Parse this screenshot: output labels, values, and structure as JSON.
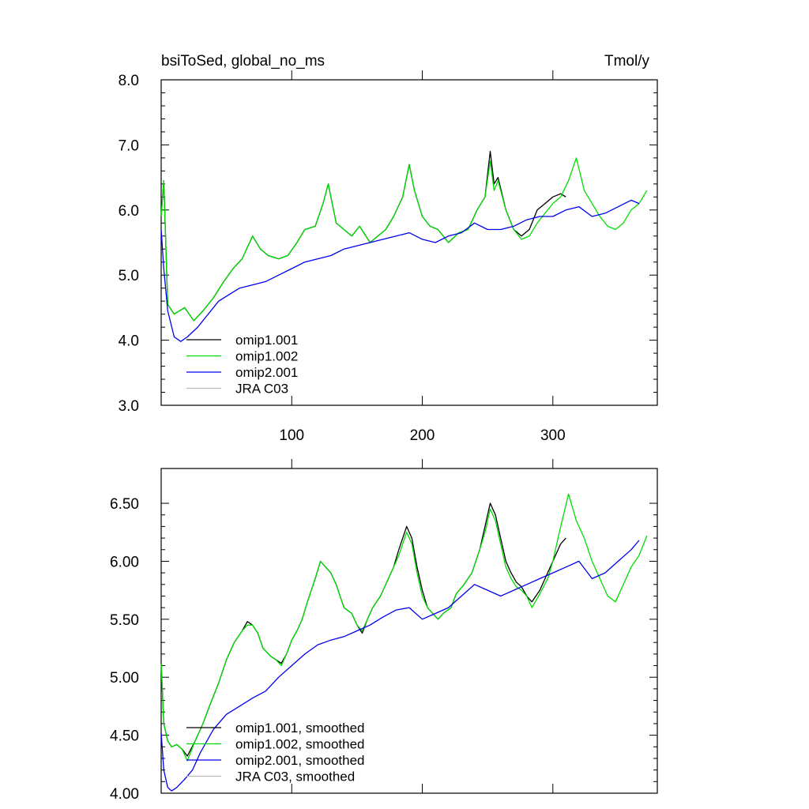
{
  "chart_data": [
    {
      "type": "line",
      "title": "bsiToSed, global_no_ms",
      "units": "Tmol/y",
      "xlim": [
        0,
        380
      ],
      "ylim": [
        3.0,
        8.0
      ],
      "xticks": [
        100,
        200,
        300
      ],
      "xtick_labels": [
        "100",
        "200",
        "300"
      ],
      "yticks": [
        3.0,
        4.0,
        5.0,
        6.0,
        7.0,
        8.0
      ],
      "ytick_labels": [
        "3.0",
        "4.0",
        "5.0",
        "6.0",
        "7.0",
        "8.0"
      ],
      "legend_position": "bottom-left",
      "grid": false,
      "series": [
        {
          "name": "omip1.001",
          "color": "#000000",
          "x": [
            0,
            2,
            5,
            10,
            18,
            25,
            32,
            40,
            48,
            55,
            62,
            70,
            76,
            82,
            90,
            97,
            104,
            110,
            118,
            124,
            128,
            134,
            140,
            146,
            152,
            160,
            166,
            172,
            178,
            185,
            190,
            194,
            200,
            206,
            212,
            220,
            228,
            235,
            242,
            248,
            252,
            255,
            258,
            264,
            270,
            276,
            282,
            288,
            294,
            300,
            306,
            310
          ],
          "y": [
            5.9,
            6.45,
            4.55,
            4.4,
            4.5,
            4.3,
            4.45,
            4.65,
            4.9,
            5.1,
            5.25,
            5.6,
            5.4,
            5.3,
            5.25,
            5.3,
            5.5,
            5.7,
            5.75,
            6.1,
            6.4,
            5.8,
            5.7,
            5.6,
            5.75,
            5.5,
            5.6,
            5.7,
            5.9,
            6.2,
            6.7,
            6.3,
            5.9,
            5.75,
            5.7,
            5.5,
            5.65,
            5.7,
            6.0,
            6.2,
            6.9,
            6.4,
            6.5,
            6.0,
            5.7,
            5.6,
            5.7,
            6.0,
            6.1,
            6.2,
            6.25,
            6.2
          ]
        },
        {
          "name": "omip1.002",
          "color": "#00dd00",
          "x": [
            0,
            2,
            5,
            10,
            18,
            25,
            32,
            40,
            48,
            55,
            62,
            70,
            76,
            82,
            90,
            97,
            104,
            110,
            118,
            124,
            128,
            134,
            140,
            146,
            152,
            160,
            166,
            172,
            178,
            185,
            190,
            194,
            200,
            206,
            212,
            220,
            228,
            235,
            242,
            248,
            252,
            255,
            258,
            264,
            270,
            276,
            282,
            288,
            294,
            300,
            306,
            312,
            318,
            324,
            330,
            336,
            342,
            348,
            354,
            360,
            366,
            372
          ],
          "y": [
            5.9,
            6.45,
            4.55,
            4.4,
            4.5,
            4.3,
            4.45,
            4.65,
            4.9,
            5.1,
            5.25,
            5.6,
            5.4,
            5.3,
            5.25,
            5.3,
            5.5,
            5.7,
            5.75,
            6.1,
            6.4,
            5.8,
            5.7,
            5.6,
            5.75,
            5.5,
            5.6,
            5.7,
            5.9,
            6.2,
            6.7,
            6.3,
            5.9,
            5.75,
            5.7,
            5.5,
            5.65,
            5.7,
            6.0,
            6.2,
            6.75,
            6.3,
            6.45,
            6.0,
            5.7,
            5.55,
            5.6,
            5.8,
            5.95,
            6.1,
            6.2,
            6.45,
            6.8,
            6.3,
            6.1,
            5.9,
            5.75,
            5.7,
            5.8,
            6.0,
            6.1,
            6.3
          ]
        },
        {
          "name": "omip2.001",
          "color": "#0000ee",
          "x": [
            0,
            2,
            5,
            10,
            15,
            20,
            28,
            36,
            44,
            52,
            60,
            70,
            80,
            90,
            100,
            110,
            120,
            130,
            140,
            150,
            160,
            170,
            180,
            190,
            200,
            210,
            220,
            230,
            240,
            250,
            260,
            270,
            280,
            290,
            300,
            310,
            320,
            330,
            340,
            350,
            360,
            366
          ],
          "y": [
            5.7,
            5.1,
            4.45,
            4.05,
            3.98,
            4.05,
            4.2,
            4.4,
            4.6,
            4.7,
            4.8,
            4.85,
            4.9,
            5.0,
            5.1,
            5.2,
            5.25,
            5.3,
            5.4,
            5.45,
            5.5,
            5.55,
            5.6,
            5.65,
            5.55,
            5.5,
            5.6,
            5.65,
            5.8,
            5.7,
            5.7,
            5.75,
            5.85,
            5.9,
            5.9,
            6.0,
            6.05,
            5.9,
            5.95,
            6.05,
            6.15,
            6.1
          ]
        },
        {
          "name": "JRA C03",
          "color": "#bbbbbb",
          "x": [],
          "y": []
        }
      ]
    },
    {
      "type": "line",
      "xlim": [
        0,
        380
      ],
      "ylim": [
        4.0,
        6.8
      ],
      "xticks": [
        100,
        200,
        300
      ],
      "yticks": [
        4.0,
        4.5,
        5.0,
        5.5,
        6.0,
        6.5
      ],
      "ytick_labels": [
        "4.00",
        "4.50",
        "5.00",
        "5.50",
        "6.00",
        "6.50"
      ],
      "legend_position": "bottom-left",
      "grid": false,
      "series": [
        {
          "name": "omip1.001, smoothed",
          "color": "#000000",
          "x": [
            0,
            2,
            5,
            8,
            12,
            16,
            20,
            26,
            32,
            38,
            44,
            50,
            56,
            62,
            66,
            70,
            74,
            78,
            84,
            88,
            92,
            96,
            100,
            104,
            108,
            112,
            118,
            122,
            126,
            130,
            134,
            140,
            146,
            150,
            154,
            158,
            162,
            168,
            174,
            178,
            182,
            188,
            192,
            196,
            200,
            204,
            208,
            212,
            216,
            222,
            226,
            232,
            238,
            244,
            248,
            252,
            256,
            260,
            264,
            268,
            272,
            276,
            280,
            284,
            290,
            296,
            300,
            306,
            310
          ],
          "y": [
            5.12,
            4.6,
            4.45,
            4.4,
            4.42,
            4.38,
            4.32,
            4.45,
            4.6,
            4.78,
            4.95,
            5.15,
            5.3,
            5.4,
            5.48,
            5.45,
            5.38,
            5.25,
            5.18,
            5.15,
            5.12,
            5.2,
            5.32,
            5.4,
            5.5,
            5.65,
            5.85,
            6.0,
            5.95,
            5.9,
            5.8,
            5.6,
            5.55,
            5.45,
            5.38,
            5.5,
            5.6,
            5.7,
            5.85,
            5.95,
            6.1,
            6.3,
            6.2,
            5.95,
            5.75,
            5.6,
            5.55,
            5.5,
            5.55,
            5.6,
            5.72,
            5.8,
            5.9,
            6.1,
            6.3,
            6.5,
            6.4,
            6.2,
            6.0,
            5.9,
            5.82,
            5.78,
            5.7,
            5.65,
            5.75,
            5.9,
            6.0,
            6.15,
            6.2
          ]
        },
        {
          "name": "omip1.002, smoothed",
          "color": "#00dd00",
          "x": [
            0,
            2,
            5,
            8,
            12,
            16,
            20,
            26,
            32,
            38,
            44,
            50,
            56,
            62,
            66,
            70,
            74,
            78,
            84,
            88,
            92,
            96,
            100,
            104,
            108,
            112,
            118,
            122,
            126,
            130,
            134,
            140,
            146,
            150,
            154,
            158,
            162,
            168,
            174,
            178,
            182,
            188,
            192,
            196,
            200,
            204,
            208,
            212,
            216,
            222,
            226,
            232,
            238,
            244,
            248,
            252,
            256,
            260,
            264,
            268,
            272,
            276,
            280,
            284,
            290,
            296,
            300,
            306,
            312,
            318,
            324,
            330,
            336,
            342,
            348,
            354,
            360,
            366,
            372
          ],
          "y": [
            5.12,
            4.6,
            4.45,
            4.4,
            4.42,
            4.38,
            4.28,
            4.45,
            4.6,
            4.78,
            4.95,
            5.15,
            5.3,
            5.4,
            5.45,
            5.45,
            5.38,
            5.25,
            5.18,
            5.15,
            5.1,
            5.2,
            5.32,
            5.4,
            5.5,
            5.65,
            5.85,
            6.0,
            5.95,
            5.9,
            5.8,
            5.6,
            5.55,
            5.45,
            5.4,
            5.5,
            5.6,
            5.7,
            5.85,
            5.95,
            6.05,
            6.25,
            6.15,
            5.9,
            5.7,
            5.6,
            5.55,
            5.5,
            5.55,
            5.6,
            5.72,
            5.8,
            5.9,
            6.1,
            6.25,
            6.45,
            6.35,
            6.15,
            5.95,
            5.85,
            5.78,
            5.75,
            5.7,
            5.6,
            5.72,
            5.85,
            6.0,
            6.3,
            6.58,
            6.35,
            6.2,
            6.0,
            5.85,
            5.7,
            5.65,
            5.8,
            5.95,
            6.05,
            6.22
          ]
        },
        {
          "name": "omip2.001, smoothed",
          "color": "#0000ee",
          "x": [
            0,
            2,
            5,
            8,
            12,
            18,
            24,
            30,
            40,
            50,
            60,
            70,
            80,
            90,
            100,
            110,
            120,
            130,
            140,
            150,
            160,
            170,
            180,
            190,
            200,
            210,
            220,
            230,
            240,
            250,
            260,
            270,
            280,
            290,
            300,
            310,
            320,
            330,
            340,
            350,
            360,
            366
          ],
          "y": [
            4.52,
            4.2,
            4.05,
            4.02,
            4.05,
            4.12,
            4.2,
            4.35,
            4.55,
            4.68,
            4.75,
            4.82,
            4.88,
            5.0,
            5.1,
            5.2,
            5.28,
            5.32,
            5.35,
            5.4,
            5.45,
            5.52,
            5.58,
            5.6,
            5.5,
            5.55,
            5.6,
            5.7,
            5.8,
            5.75,
            5.7,
            5.75,
            5.8,
            5.85,
            5.9,
            5.95,
            6.0,
            5.85,
            5.9,
            6.0,
            6.1,
            6.18
          ]
        },
        {
          "name": "JRA C03, smoothed",
          "color": "#bbbbbb",
          "x": [],
          "y": []
        }
      ]
    }
  ]
}
